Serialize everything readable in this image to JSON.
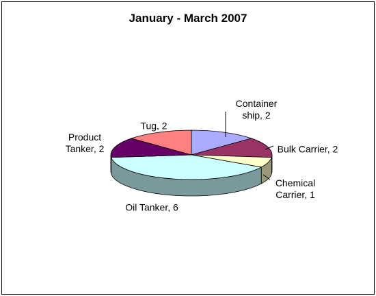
{
  "chart_data": {
    "type": "pie3d",
    "title": "January - March 2007",
    "values": [
      2,
      2,
      1,
      6,
      2,
      2
    ],
    "value_labels": [
      "Container ship, 2",
      "Bulk Carrier, 2",
      "Chemical Carrier, 1",
      "Oil Tanker, 6",
      "Product Tanker, 2",
      "Tug, 2"
    ],
    "colors": [
      "#aaaaff",
      "#993366",
      "#ffffcc",
      "#ccffff",
      "#660066",
      "#ff8080"
    ]
  }
}
